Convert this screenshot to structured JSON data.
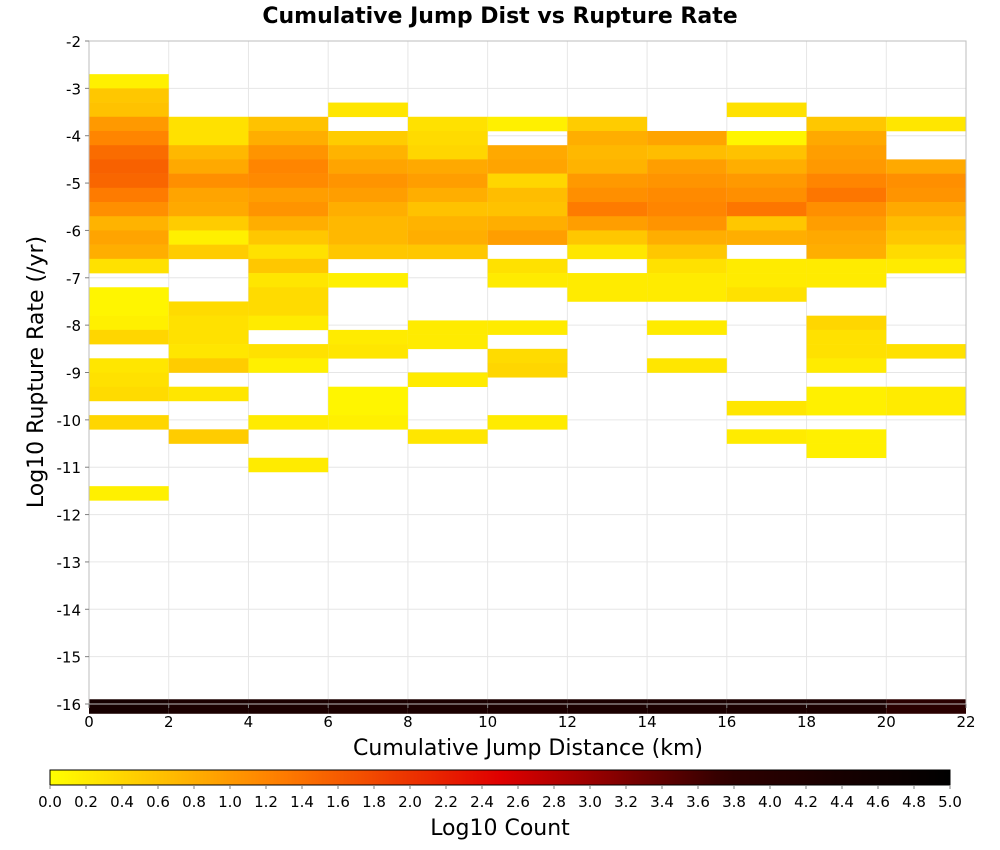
{
  "chart_data": {
    "type": "heatmap",
    "title": "Cumulative Jump Dist vs Rupture Rate",
    "xlabel": "Cumulative Jump Distance (km)",
    "ylabel": "Log10 Rupture Rate (/yr)",
    "xlim": [
      0,
      22
    ],
    "ylim": [
      -16,
      -2
    ],
    "x_ticks": [
      "0",
      "2",
      "4",
      "6",
      "8",
      "10",
      "12",
      "14",
      "16",
      "18",
      "20",
      "22"
    ],
    "y_ticks": [
      "-2",
      "-3",
      "-4",
      "-5",
      "-6",
      "-7",
      "-8",
      "-9",
      "-10",
      "-11",
      "-12",
      "-13",
      "-14",
      "-15",
      "-16"
    ],
    "x_bin_width": 2,
    "y_bin_height": 0.3,
    "grid": true,
    "colorbar": {
      "label": "Log10 Count",
      "range": [
        0,
        5
      ],
      "ticks": [
        "0.0",
        "0.2",
        "0.4",
        "0.6",
        "0.8",
        "1.0",
        "1.2",
        "1.4",
        "1.6",
        "1.8",
        "2.0",
        "2.2",
        "2.4",
        "2.6",
        "2.8",
        "3.0",
        "3.2",
        "3.4",
        "3.6",
        "3.8",
        "4.0",
        "4.2",
        "4.4",
        "4.6",
        "4.8",
        "5.0"
      ],
      "colors": [
        "#ffff00",
        "#ff8000",
        "#e00000",
        "#300000",
        "#000000"
      ]
    },
    "columns": [
      {
        "x": [
          0,
          2
        ],
        "cells": [
          [
            -2.85,
            0.15
          ],
          [
            -3.15,
            0.55
          ],
          [
            -3.45,
            0.6
          ],
          [
            -3.75,
            1.0
          ],
          [
            -4.05,
            1.2
          ],
          [
            -4.35,
            1.45
          ],
          [
            -4.65,
            1.55
          ],
          [
            -4.95,
            1.5
          ],
          [
            -5.25,
            1.3
          ],
          [
            -5.55,
            1.1
          ],
          [
            -5.85,
            0.75
          ],
          [
            -6.15,
            0.9
          ],
          [
            -6.45,
            0.8
          ],
          [
            -6.75,
            0.3
          ],
          [
            -7.35,
            0.1
          ],
          [
            -7.65,
            0.1
          ],
          [
            -7.95,
            0.15
          ],
          [
            -8.25,
            0.4
          ],
          [
            -8.85,
            0.25
          ],
          [
            -9.15,
            0.3
          ],
          [
            -9.45,
            0.35
          ],
          [
            -10.05,
            0.4
          ],
          [
            -11.55,
            0.15
          ],
          [
            -16.05,
            4.4
          ]
        ]
      },
      {
        "x": [
          2,
          4
        ],
        "cells": [
          [
            -3.75,
            0.3
          ],
          [
            -4.05,
            0.3
          ],
          [
            -4.35,
            0.7
          ],
          [
            -4.65,
            0.85
          ],
          [
            -4.95,
            1.1
          ],
          [
            -5.25,
            0.9
          ],
          [
            -5.55,
            0.85
          ],
          [
            -5.85,
            0.5
          ],
          [
            -6.15,
            0.15
          ],
          [
            -6.45,
            0.5
          ],
          [
            -7.65,
            0.35
          ],
          [
            -7.95,
            0.3
          ],
          [
            -8.25,
            0.3
          ],
          [
            -8.55,
            0.25
          ],
          [
            -8.85,
            0.5
          ],
          [
            -9.45,
            0.25
          ],
          [
            -10.35,
            0.5
          ],
          [
            -16.05,
            4.3
          ]
        ]
      },
      {
        "x": [
          4,
          6
        ],
        "cells": [
          [
            -3.75,
            0.6
          ],
          [
            -4.05,
            0.8
          ],
          [
            -4.35,
            1.05
          ],
          [
            -4.65,
            1.2
          ],
          [
            -4.95,
            1.15
          ],
          [
            -5.25,
            0.95
          ],
          [
            -5.55,
            1.05
          ],
          [
            -5.85,
            0.8
          ],
          [
            -6.15,
            0.55
          ],
          [
            -6.45,
            0.3
          ],
          [
            -6.75,
            0.55
          ],
          [
            -7.05,
            0.25
          ],
          [
            -7.35,
            0.35
          ],
          [
            -7.65,
            0.35
          ],
          [
            -7.95,
            0.2
          ],
          [
            -8.55,
            0.3
          ],
          [
            -8.85,
            0.15
          ],
          [
            -10.05,
            0.2
          ],
          [
            -10.95,
            0.2
          ],
          [
            -16.05,
            4.3
          ]
        ]
      },
      {
        "x": [
          6,
          8
        ],
        "cells": [
          [
            -3.45,
            0.25
          ],
          [
            -4.05,
            0.5
          ],
          [
            -4.35,
            0.75
          ],
          [
            -4.65,
            0.9
          ],
          [
            -4.95,
            1.05
          ],
          [
            -5.25,
            0.95
          ],
          [
            -5.55,
            0.8
          ],
          [
            -5.85,
            0.7
          ],
          [
            -6.15,
            0.7
          ],
          [
            -6.45,
            0.55
          ],
          [
            -7.05,
            0.15
          ],
          [
            -8.25,
            0.2
          ],
          [
            -8.55,
            0.25
          ],
          [
            -9.45,
            0.1
          ],
          [
            -9.75,
            0.1
          ],
          [
            -10.05,
            0.15
          ],
          [
            -16.05,
            4.3
          ]
        ]
      },
      {
        "x": [
          8,
          10
        ],
        "cells": [
          [
            -3.75,
            0.3
          ],
          [
            -4.05,
            0.35
          ],
          [
            -4.35,
            0.4
          ],
          [
            -4.65,
            0.85
          ],
          [
            -4.95,
            0.95
          ],
          [
            -5.25,
            0.8
          ],
          [
            -5.55,
            0.6
          ],
          [
            -5.85,
            0.75
          ],
          [
            -6.15,
            0.8
          ],
          [
            -6.45,
            0.55
          ],
          [
            -8.05,
            0.2
          ],
          [
            -8.35,
            0.2
          ],
          [
            -9.15,
            0.2
          ],
          [
            -10.35,
            0.25
          ],
          [
            -16.05,
            4.3
          ]
        ]
      },
      {
        "x": [
          10,
          12
        ],
        "cells": [
          [
            -3.75,
            0.15
          ],
          [
            -4.35,
            0.85
          ],
          [
            -4.65,
            0.9
          ],
          [
            -4.95,
            0.4
          ],
          [
            -5.25,
            0.65
          ],
          [
            -5.55,
            0.6
          ],
          [
            -5.85,
            0.8
          ],
          [
            -6.15,
            0.95
          ],
          [
            -6.75,
            0.3
          ],
          [
            -7.05,
            0.2
          ],
          [
            -8.05,
            0.2
          ],
          [
            -8.65,
            0.35
          ],
          [
            -8.95,
            0.4
          ],
          [
            -10.05,
            0.2
          ],
          [
            -16.05,
            4.3
          ]
        ]
      },
      {
        "x": [
          12,
          14
        ],
        "cells": [
          [
            -3.75,
            0.5
          ],
          [
            -4.05,
            0.8
          ],
          [
            -4.35,
            0.7
          ],
          [
            -4.65,
            0.75
          ],
          [
            -4.95,
            1.0
          ],
          [
            -5.25,
            1.1
          ],
          [
            -5.55,
            1.3
          ],
          [
            -5.85,
            0.95
          ],
          [
            -6.15,
            0.55
          ],
          [
            -6.45,
            0.25
          ],
          [
            -7.05,
            0.2
          ],
          [
            -7.35,
            0.2
          ],
          [
            -16.05,
            4.3
          ]
        ]
      },
      {
        "x": [
          14,
          16
        ],
        "cells": [
          [
            -4.05,
            0.9
          ],
          [
            -4.35,
            0.65
          ],
          [
            -4.65,
            0.95
          ],
          [
            -4.95,
            1.05
          ],
          [
            -5.25,
            1.15
          ],
          [
            -5.55,
            1.2
          ],
          [
            -5.85,
            1.05
          ],
          [
            -6.15,
            0.8
          ],
          [
            -6.45,
            0.55
          ],
          [
            -6.75,
            0.3
          ],
          [
            -7.05,
            0.2
          ],
          [
            -7.35,
            0.2
          ],
          [
            -8.05,
            0.2
          ],
          [
            -8.85,
            0.25
          ],
          [
            -16.05,
            4.3
          ]
        ]
      },
      {
        "x": [
          16,
          18
        ],
        "cells": [
          [
            -3.45,
            0.3
          ],
          [
            -4.05,
            0.1
          ],
          [
            -4.35,
            0.6
          ],
          [
            -4.65,
            0.8
          ],
          [
            -4.95,
            1.0
          ],
          [
            -5.25,
            1.1
          ],
          [
            -5.55,
            1.35
          ],
          [
            -5.85,
            0.55
          ],
          [
            -6.15,
            0.8
          ],
          [
            -6.75,
            0.2
          ],
          [
            -7.05,
            0.2
          ],
          [
            -7.35,
            0.3
          ],
          [
            -9.75,
            0.25
          ],
          [
            -10.35,
            0.2
          ],
          [
            -16.05,
            4.3
          ]
        ]
      },
      {
        "x": [
          18,
          20
        ],
        "cells": [
          [
            -3.75,
            0.55
          ],
          [
            -4.05,
            0.85
          ],
          [
            -4.35,
            0.95
          ],
          [
            -4.65,
            1.0
          ],
          [
            -4.95,
            1.2
          ],
          [
            -5.25,
            1.35
          ],
          [
            -5.55,
            1.1
          ],
          [
            -5.85,
            0.95
          ],
          [
            -6.15,
            0.85
          ],
          [
            -6.45,
            0.8
          ],
          [
            -6.75,
            0.2
          ],
          [
            -7.05,
            0.2
          ],
          [
            -7.95,
            0.4
          ],
          [
            -8.25,
            0.3
          ],
          [
            -8.55,
            0.3
          ],
          [
            -8.85,
            0.2
          ],
          [
            -9.45,
            0.15
          ],
          [
            -9.75,
            0.15
          ],
          [
            -10.35,
            0.15
          ],
          [
            -10.65,
            0.15
          ],
          [
            -16.05,
            4.3
          ]
        ]
      },
      {
        "x": [
          20,
          22
        ],
        "cells": [
          [
            -3.75,
            0.25
          ],
          [
            -4.65,
            0.85
          ],
          [
            -4.95,
            1.1
          ],
          [
            -5.25,
            1.05
          ],
          [
            -5.55,
            0.85
          ],
          [
            -5.85,
            0.65
          ],
          [
            -6.15,
            0.55
          ],
          [
            -6.45,
            0.35
          ],
          [
            -6.75,
            0.2
          ],
          [
            -8.55,
            0.3
          ],
          [
            -9.45,
            0.2
          ],
          [
            -9.75,
            0.2
          ],
          [
            -16.05,
            3.9
          ]
        ]
      }
    ]
  }
}
